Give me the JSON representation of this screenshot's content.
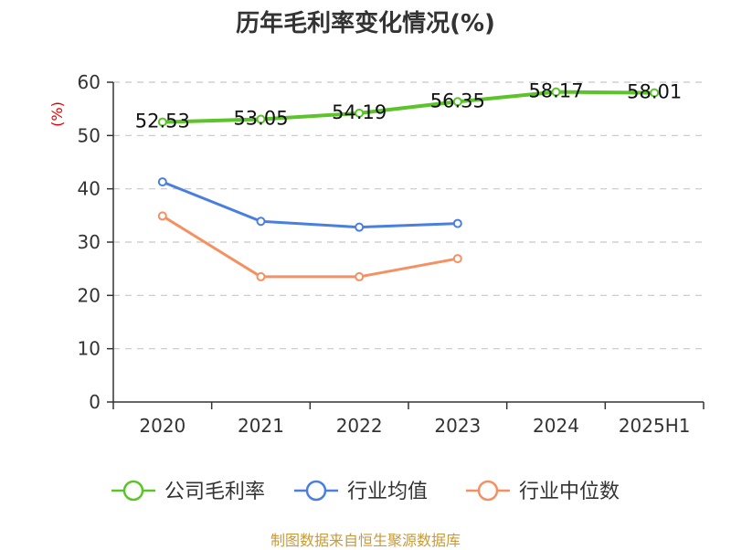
{
  "title": "历年毛利率变化情况(%)",
  "source": "制图数据来自恒生聚源数据库",
  "chart_data": {
    "type": "line",
    "title": "历年毛利率变化情况(%)",
    "ylabel": "(%)",
    "xlabel": "",
    "categories": [
      "2020",
      "2021",
      "2022",
      "2023",
      "2024",
      "2025H1"
    ],
    "ylim": [
      0,
      60
    ],
    "yticks": [
      0,
      10,
      20,
      30,
      40,
      50,
      60
    ],
    "grid": true,
    "legend_position": "bottom",
    "series": [
      {
        "name": "公司毛利率",
        "color": "#5cc42a",
        "values": [
          52.53,
          53.05,
          54.19,
          56.35,
          58.17,
          58.01
        ],
        "labels": [
          "52.53",
          "53.05",
          "54.19",
          "56.35",
          "58.17",
          "58.01"
        ]
      },
      {
        "name": "行业均值",
        "color": "#4a7fe0",
        "values": [
          41.3,
          33.9,
          32.8,
          33.5,
          null,
          null
        ]
      },
      {
        "name": "行业中位数",
        "color": "#f59060",
        "values": [
          34.9,
          23.5,
          23.5,
          26.9,
          null,
          null
        ]
      }
    ]
  }
}
